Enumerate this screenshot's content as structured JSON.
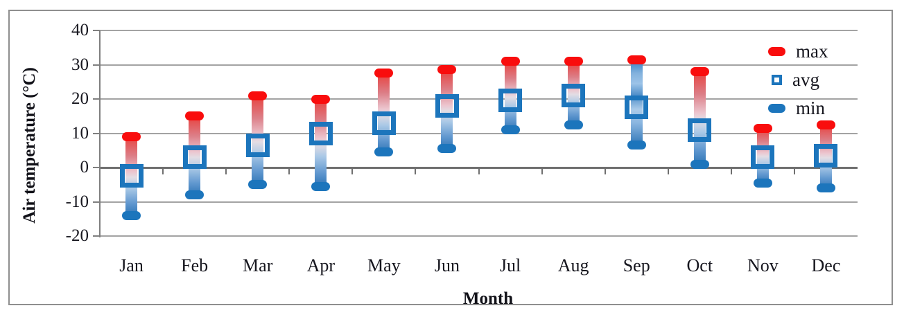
{
  "chart_data": {
    "type": "bar",
    "subtype": "floating-range-bars-with-avg-marker",
    "title": "",
    "xlabel": "Month",
    "ylabel": "Air temperature (°C)",
    "categories": [
      "Jan",
      "Feb",
      "Mar",
      "Apr",
      "May",
      "Jun",
      "Jul",
      "Aug",
      "Sep",
      "Oct",
      "Nov",
      "Dec"
    ],
    "series": [
      {
        "name": "max",
        "marker": "red-rounded-dash",
        "values": [
          9,
          15,
          21,
          20,
          27.5,
          28.5,
          31,
          31,
          31.5,
          28,
          11.5,
          12.5
        ]
      },
      {
        "name": "avg",
        "marker": "blue-open-square",
        "values": [
          -2.5,
          3,
          6.5,
          10,
          13,
          18,
          19.5,
          21,
          17.5,
          11,
          3,
          3.5
        ]
      },
      {
        "name": "min",
        "marker": "blue-rounded-dash",
        "values": [
          -14,
          -8,
          -5,
          -5.5,
          4.5,
          5.5,
          11,
          12.5,
          6.5,
          1,
          -4.5,
          -6
        ]
      }
    ],
    "ylim": [
      -20,
      40
    ],
    "yticks": [
      40,
      30,
      20,
      10,
      0,
      -10,
      -20
    ],
    "grid": true,
    "legend_position": "top-right",
    "legend_entries": [
      "max",
      "avg",
      "min"
    ],
    "notes": "Each month shows a vertical bar fading from red at max to blue at min; Sep bar is blue-toned; open square marks avg."
  },
  "colors": {
    "max_red": "#f90d0d",
    "series_blue": "#1c75bc",
    "bar_gradient_top": "#e8413e",
    "bar_gradient_bottom": "#2e75b6",
    "gridline": "#a3a3a3",
    "zero_line": "#6f6f6f",
    "axis_line": "#7f7f7f",
    "text": "#16161e",
    "frame_border": "#8f8f8f",
    "background": "#ffffff"
  }
}
